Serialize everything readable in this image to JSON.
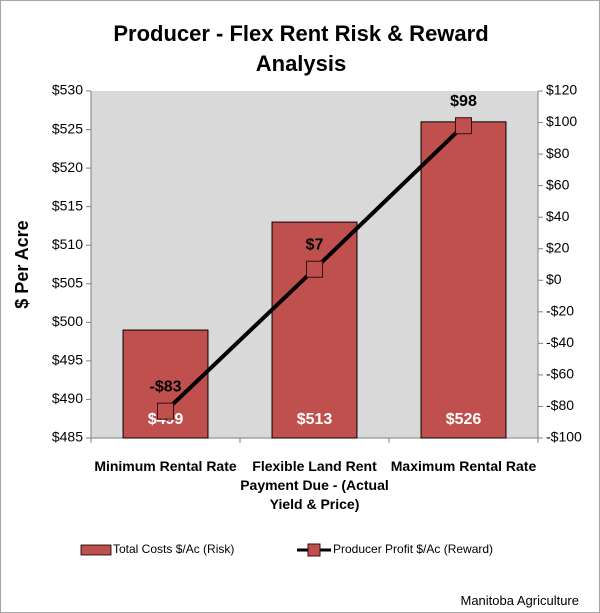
{
  "chart_data": {
    "type": "bar",
    "title": "Producer - Flex Rent Risk & Reward Analysis",
    "ylabel": "$ Per Acre",
    "source": "Manitoba Agriculture",
    "categories": [
      "Minimum Rental Rate",
      "Flexible Land Rent Payment Due - (Actual Yield & Price)",
      "Maximum Rental Rate"
    ],
    "series": [
      {
        "name": "Total Costs $/Ac (Risk)",
        "type": "bar",
        "color": "#c0504d",
        "values": [
          499,
          513,
          526
        ],
        "value_labels": [
          "$499",
          "$513",
          "$526"
        ]
      },
      {
        "name": "Producer Profit $/Ac (Reward)",
        "type": "line",
        "axis": "y2",
        "color": "#000000",
        "marker_color": "#c0504d",
        "values": [
          -83,
          7,
          98
        ],
        "value_labels": [
          "-$83",
          "$7",
          "$98"
        ]
      }
    ],
    "ylim": [
      485,
      530
    ],
    "yticks": [
      {
        "value": 485,
        "label": "$485"
      },
      {
        "value": 490,
        "label": "$490"
      },
      {
        "value": 495,
        "label": "$495"
      },
      {
        "value": 500,
        "label": "$500"
      },
      {
        "value": 505,
        "label": "$505"
      },
      {
        "value": 510,
        "label": "$510"
      },
      {
        "value": 515,
        "label": "$515"
      },
      {
        "value": 520,
        "label": "$520"
      },
      {
        "value": 525,
        "label": "$525"
      },
      {
        "value": 530,
        "label": "$530"
      }
    ],
    "y2lim": [
      -100,
      120
    ],
    "y2ticks": [
      {
        "value": -100,
        "label": "-$100"
      },
      {
        "value": -80,
        "label": "-$80"
      },
      {
        "value": -60,
        "label": "-$60"
      },
      {
        "value": -40,
        "label": "-$40"
      },
      {
        "value": -20,
        "label": "-$20"
      },
      {
        "value": 0,
        "label": "$0"
      },
      {
        "value": 20,
        "label": "$20"
      },
      {
        "value": 40,
        "label": "$40"
      },
      {
        "value": 60,
        "label": "$60"
      },
      {
        "value": 80,
        "label": "$80"
      },
      {
        "value": 100,
        "label": "$100"
      },
      {
        "value": 120,
        "label": "$120"
      }
    ],
    "grid": false,
    "legend": "bottom"
  }
}
